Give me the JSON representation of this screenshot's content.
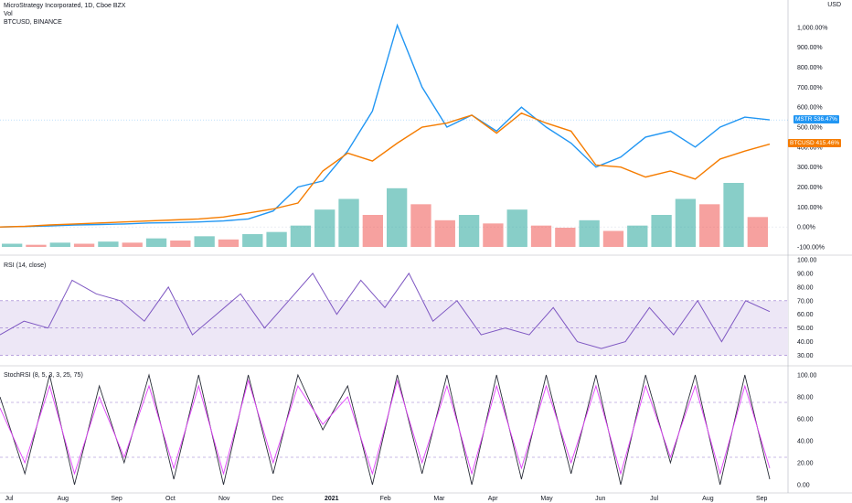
{
  "header": {
    "title": "MicroStrategy Incorporated, 1D, Cboe BZX",
    "vol_label": "Vol",
    "compare_label": "BTCUSD, BINANCE",
    "currency": "USD"
  },
  "rsi_panel": {
    "label": "RSI (14, close)"
  },
  "stoch_panel": {
    "label": "StochRSI (8, 5, 3, 3, 25, 75)"
  },
  "price_tags": {
    "mstr": {
      "symbol": "MSTR",
      "value": "536.47%"
    },
    "btc": {
      "symbol": "BTCUSD",
      "value": "415.46%"
    }
  },
  "price_axis_ticks": [
    "1,000.00%",
    "900.00%",
    "800.00%",
    "700.00%",
    "600.00%",
    "500.00%",
    "400.00%",
    "300.00%",
    "200.00%",
    "100.00%",
    "0.00%",
    "-100.00%"
  ],
  "rsi_axis_ticks": [
    "100.00",
    "90.00",
    "80.00",
    "70.00",
    "60.00",
    "50.00",
    "40.00",
    "30.00"
  ],
  "stoch_axis_ticks": [
    "100.00",
    "80.00",
    "60.00",
    "40.00",
    "20.00",
    "0.00"
  ],
  "time_axis_labels": [
    "Jul",
    "Aug",
    "Sep",
    "Oct",
    "Nov",
    "Dec",
    "2021",
    "Feb",
    "Mar",
    "Apr",
    "May",
    "Jun",
    "Jul",
    "Aug",
    "Sep"
  ],
  "colors": {
    "mstr": "#2196f3",
    "btc": "#f57c00",
    "rsi": "#7e57c2",
    "stoch_k": "#2a2e39",
    "stoch_d": "#e040fb",
    "vol_up": "#26a69a",
    "vol_down": "#ef5350",
    "band": "#ede7f6"
  },
  "chart_data": [
    {
      "type": "line",
      "title": "MicroStrategy Incorporated, 1D, Cboe BZX",
      "ylabel": "%",
      "ylim": [
        -100,
        1100
      ],
      "x_labels": [
        "Jul",
        "Aug",
        "Sep",
        "Oct",
        "Nov",
        "Dec",
        "2021",
        "Feb",
        "Mar",
        "Apr",
        "May",
        "Jun",
        "Jul",
        "Aug"
      ],
      "series": [
        {
          "name": "MSTR",
          "values": [
            0,
            2,
            5,
            10,
            12,
            15,
            20,
            22,
            25,
            30,
            40,
            80,
            200,
            230,
            380,
            580,
            1010,
            700,
            500,
            560,
            480,
            600,
            500,
            420,
            300,
            350,
            450,
            480,
            400,
            500,
            550,
            536
          ]
        },
        {
          "name": "BTCUSD",
          "values": [
            0,
            3,
            10,
            15,
            20,
            25,
            30,
            35,
            40,
            50,
            70,
            90,
            120,
            280,
            370,
            330,
            420,
            500,
            520,
            560,
            470,
            570,
            520,
            480,
            310,
            300,
            250,
            280,
            240,
            340,
            380,
            415
          ]
        }
      ]
    },
    {
      "type": "bar",
      "title": "Vol",
      "values": [
        3,
        2,
        4,
        3,
        5,
        4,
        8,
        6,
        10,
        7,
        12,
        14,
        20,
        35,
        45,
        30,
        55,
        40,
        25,
        30,
        22,
        35,
        20,
        18,
        25,
        15,
        20,
        30,
        45,
        40,
        60,
        28
      ]
    },
    {
      "type": "line",
      "title": "RSI (14, close)",
      "ylim": [
        25,
        100
      ],
      "series": [
        {
          "name": "",
          "values": [
            45,
            55,
            50,
            85,
            75,
            70,
            55,
            80,
            45,
            60,
            75,
            50,
            70,
            90,
            60,
            85,
            65,
            90,
            55,
            70,
            45,
            50,
            45,
            65,
            40,
            35,
            40,
            65,
            45,
            70,
            40,
            70,
            62
          ]
        }
      ],
      "bands": [
        30,
        50,
        70
      ]
    },
    {
      "type": "line",
      "title": "StochRSI (8, 5, 3, 3, 25, 75)",
      "ylim": [
        -5,
        105
      ],
      "series": [
        {
          "name": "",
          "values": [
            80,
            10,
            100,
            0,
            90,
            20,
            100,
            5,
            100,
            0,
            100,
            10,
            100,
            50,
            90,
            0,
            100,
            10,
            100,
            0,
            100,
            5,
            100,
            10,
            100,
            0,
            100,
            20,
            100,
            0,
            100,
            5
          ]
        },
        {
          "name": "",
          "values": [
            70,
            20,
            90,
            10,
            80,
            25,
            90,
            15,
            90,
            10,
            95,
            20,
            90,
            55,
            80,
            10,
            95,
            20,
            90,
            10,
            90,
            15,
            90,
            20,
            90,
            10,
            90,
            25,
            90,
            10,
            90,
            15
          ]
        }
      ],
      "bands": [
        25,
        75
      ]
    }
  ]
}
